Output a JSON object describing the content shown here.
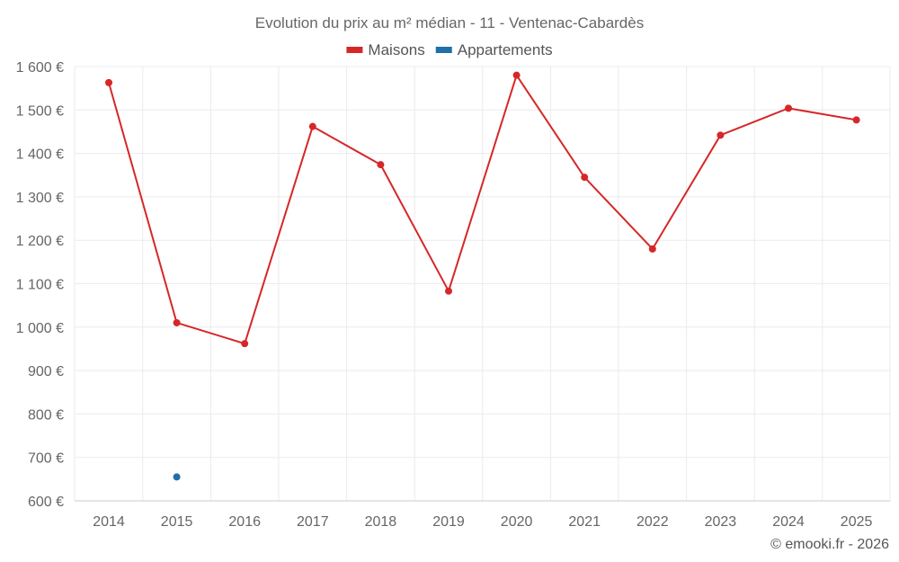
{
  "chart_data": {
    "type": "line",
    "title": "Evolution du prix au m² médian - 11 - Ventenac-Cabardès",
    "categories": [
      "2014",
      "2015",
      "2016",
      "2017",
      "2018",
      "2019",
      "2020",
      "2021",
      "2022",
      "2023",
      "2024",
      "2025"
    ],
    "series": [
      {
        "name": "Maisons",
        "color": "#d62728",
        "values": [
          1563,
          1010,
          962,
          1462,
          1374,
          1083,
          1580,
          1345,
          1180,
          1442,
          1504,
          1477
        ]
      },
      {
        "name": "Appartements",
        "color": "#1f6fa8",
        "values": [
          null,
          655,
          null,
          null,
          null,
          null,
          null,
          null,
          null,
          null,
          null,
          null
        ]
      }
    ],
    "ylim": [
      600,
      1600
    ],
    "yticks": [
      600,
      700,
      800,
      900,
      1000,
      1100,
      1200,
      1300,
      1400,
      1500,
      1600
    ],
    "ytick_labels": [
      "600 €",
      "700 €",
      "800 €",
      "900 €",
      "1 000 €",
      "1 100 €",
      "1 200 €",
      "1 300 €",
      "1 400 €",
      "1 500 €",
      "1 600 €"
    ],
    "grid": true,
    "legend_position": "top-center",
    "xlabel": "",
    "ylabel": ""
  },
  "credit": "© emooki.fr - 2026"
}
